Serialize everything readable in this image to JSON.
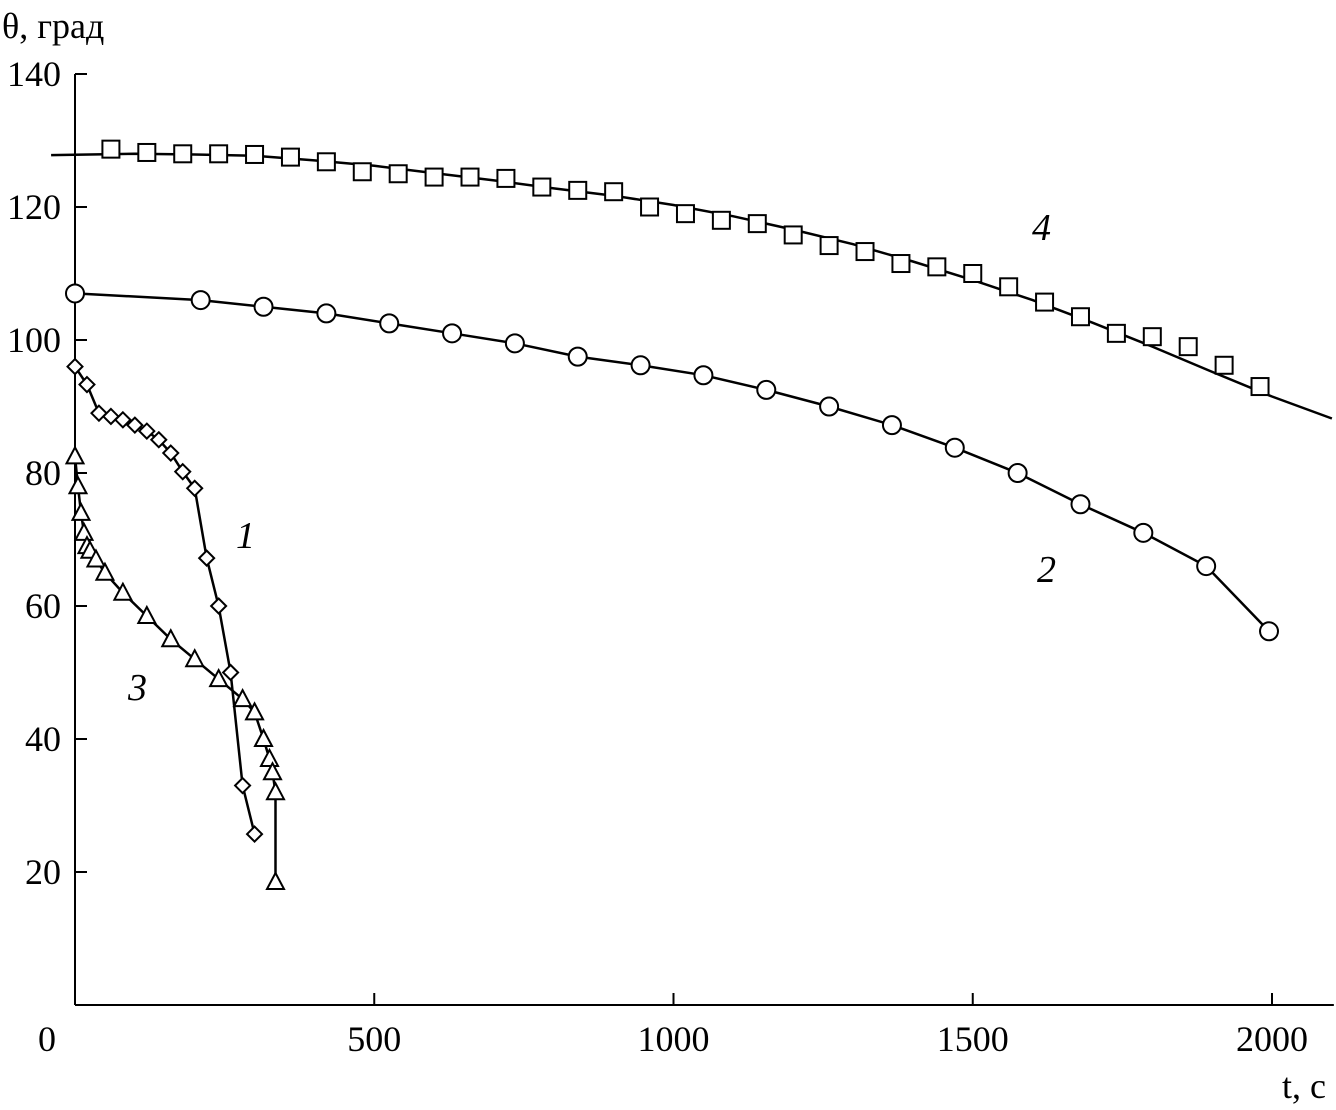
{
  "chart_data": {
    "type": "line",
    "xlabel": "t, с",
    "ylabel": "θ, град",
    "xlim": [
      0,
      2100
    ],
    "ylim": [
      0,
      140
    ],
    "x_ticks": [
      0,
      500,
      1000,
      1500,
      2000
    ],
    "y_ticks": [
      20,
      40,
      60,
      80,
      100,
      120,
      140
    ],
    "grid": false,
    "series": [
      {
        "name": "1",
        "marker": "diamond",
        "points": [
          [
            0,
            96
          ],
          [
            20,
            93.3
          ],
          [
            40,
            89
          ],
          [
            60,
            88.5
          ],
          [
            80,
            88
          ],
          [
            100,
            87.2
          ],
          [
            120,
            86.3
          ],
          [
            140,
            85
          ],
          [
            160,
            83
          ],
          [
            180,
            80.2
          ],
          [
            200,
            77.7
          ],
          [
            220,
            67.2
          ],
          [
            240,
            60
          ],
          [
            260,
            50
          ],
          [
            280,
            33
          ],
          [
            300,
            25.7
          ]
        ]
      },
      {
        "name": "2",
        "marker": "circle",
        "points": [
          [
            0,
            107
          ],
          [
            210,
            106
          ],
          [
            315,
            105
          ],
          [
            420,
            104
          ],
          [
            525,
            102.5
          ],
          [
            630,
            101
          ],
          [
            735,
            99.5
          ],
          [
            840,
            97.5
          ],
          [
            945,
            96.2
          ],
          [
            1050,
            94.7
          ],
          [
            1155,
            92.5
          ],
          [
            1260,
            90
          ],
          [
            1365,
            87.2
          ],
          [
            1470,
            83.8
          ],
          [
            1575,
            80
          ],
          [
            1680,
            75.3
          ],
          [
            1785,
            71
          ],
          [
            1890,
            66
          ],
          [
            1995,
            56.2
          ]
        ]
      },
      {
        "name": "3",
        "marker": "triangle",
        "points": [
          [
            0,
            82.5
          ],
          [
            5,
            78
          ],
          [
            10,
            74
          ],
          [
            15,
            71
          ],
          [
            20,
            69
          ],
          [
            25,
            68.3
          ],
          [
            35,
            67
          ],
          [
            50,
            65
          ],
          [
            80,
            62
          ],
          [
            120,
            58.5
          ],
          [
            160,
            55
          ],
          [
            200,
            52
          ],
          [
            240,
            49
          ],
          [
            280,
            46
          ],
          [
            300,
            44
          ],
          [
            315,
            40
          ],
          [
            325,
            37
          ],
          [
            330,
            35
          ],
          [
            335,
            32
          ],
          [
            335,
            18.5
          ]
        ]
      },
      {
        "name": "4",
        "marker": "square",
        "points": [
          [
            60,
            128.7
          ],
          [
            120,
            128.2
          ],
          [
            180,
            128
          ],
          [
            240,
            128
          ],
          [
            300,
            127.9
          ],
          [
            360,
            127.5
          ],
          [
            420,
            126.8
          ],
          [
            480,
            125.3
          ],
          [
            540,
            125
          ],
          [
            600,
            124.5
          ],
          [
            660,
            124.5
          ],
          [
            720,
            124.3
          ],
          [
            780,
            123
          ],
          [
            840,
            122.5
          ],
          [
            900,
            122.3
          ],
          [
            960,
            120
          ],
          [
            1020,
            119
          ],
          [
            1080,
            118
          ],
          [
            1140,
            117.5
          ],
          [
            1200,
            115.8
          ],
          [
            1260,
            114.2
          ],
          [
            1320,
            113.3
          ],
          [
            1380,
            111.5
          ],
          [
            1440,
            111
          ],
          [
            1500,
            110
          ],
          [
            1560,
            108
          ],
          [
            1620,
            105.7
          ],
          [
            1680,
            103.5
          ],
          [
            1740,
            101
          ],
          [
            1800,
            100.5
          ],
          [
            1860,
            99
          ],
          [
            1920,
            96.2
          ],
          [
            1980,
            93
          ]
        ],
        "fit": [
          [
            -40,
            127.8
          ],
          [
            100,
            128
          ],
          [
            200,
            127.9
          ],
          [
            300,
            127.7
          ],
          [
            400,
            127
          ],
          [
            500,
            126.2
          ],
          [
            600,
            125.1
          ],
          [
            700,
            124
          ],
          [
            800,
            122.8
          ],
          [
            900,
            121.7
          ],
          [
            1000,
            120.3
          ],
          [
            1100,
            118.6
          ],
          [
            1200,
            116.6
          ],
          [
            1300,
            114.4
          ],
          [
            1400,
            111.8
          ],
          [
            1500,
            109
          ],
          [
            1600,
            106
          ],
          [
            1700,
            102.6
          ],
          [
            1800,
            99
          ],
          [
            1900,
            95.2
          ],
          [
            2000,
            91.5
          ],
          [
            2100,
            88.2
          ]
        ]
      }
    ]
  }
}
